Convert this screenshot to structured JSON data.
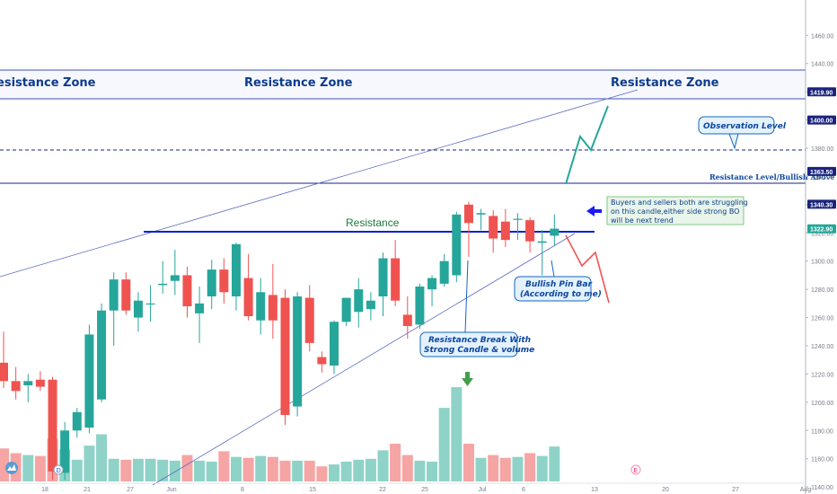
{
  "chart_data": {
    "type": "candlestick",
    "y_axis": {
      "ylim": [
        1135,
        1485
      ],
      "tick_values": [
        1140,
        1160,
        1180,
        1200,
        1220,
        1240,
        1260,
        1280,
        1300,
        1320,
        1340,
        1360,
        1380,
        1400,
        1420,
        1440,
        1460
      ],
      "tick_labels": [
        "1140.00",
        "1160.00",
        "1180.00",
        "1200.00",
        "1220.00",
        "1240.00",
        "1260.00",
        "1280.00",
        "1300.00",
        "1320.00",
        "1340.00",
        "1360.00",
        "1380.00",
        "1400.00",
        "1420.00",
        "1440.00",
        "1460.00"
      ],
      "price_tags": [
        {
          "value": 1419.9,
          "label": "1419.90",
          "color": "#1a237e"
        },
        {
          "value": 1400.0,
          "label": "1400.00",
          "color": "#1a237e"
        },
        {
          "value": 1363.5,
          "label": "1363.50",
          "color": "#1a237e"
        },
        {
          "value": 1340.3,
          "label": "1340.30",
          "color": "#1a237e"
        },
        {
          "value": 1322.9,
          "label": "1322.90",
          "color": "#26a69a"
        }
      ]
    },
    "x_axis": {
      "tick_labels": [
        {
          "label": "18",
          "index": 0
        },
        {
          "label": "21",
          "index": 1
        },
        {
          "label": "27",
          "index": 2
        },
        {
          "label": "Jun",
          "index": 3
        },
        {
          "label": "8",
          "index": 4
        },
        {
          "label": "15",
          "index": 5
        },
        {
          "label": "22",
          "index": 6
        },
        {
          "label": "25",
          "index": 7
        },
        {
          "label": "Jul",
          "index": 8
        },
        {
          "label": "6",
          "index": 9
        },
        {
          "label": "13",
          "index": 10
        },
        {
          "label": "20",
          "index": 11
        },
        {
          "label": "27",
          "index": 12
        },
        {
          "label": "Aug",
          "index": 13
        }
      ]
    },
    "colors": {
      "up": "#26a69a",
      "down": "#ef5350",
      "vol_up": "#8fd3c8",
      "vol_down": "#f5a5a4",
      "line": "#1a237e",
      "blue": "#0d1fd6"
    },
    "candles": [
      {
        "o": 1228,
        "h": 1250,
        "l": 1210,
        "c": 1215,
        "v": 0.35
      },
      {
        "o": 1215,
        "h": 1225,
        "l": 1202,
        "c": 1208,
        "v": 0.3
      },
      {
        "o": 1212,
        "h": 1220,
        "l": 1200,
        "c": 1215,
        "v": 0.28
      },
      {
        "o": 1216,
        "h": 1222,
        "l": 1208,
        "c": 1211,
        "v": 0.27
      },
      {
        "o": 1216,
        "h": 1218,
        "l": 1145,
        "c": 1151,
        "v": 0.45
      },
      {
        "o": 1150,
        "h": 1186,
        "l": 1145,
        "c": 1180,
        "v": 0.34
      },
      {
        "o": 1180,
        "h": 1196,
        "l": 1175,
        "c": 1193,
        "v": 0.23
      },
      {
        "o": 1182,
        "h": 1255,
        "l": 1178,
        "c": 1248,
        "v": 0.38
      },
      {
        "o": 1202,
        "h": 1270,
        "l": 1200,
        "c": 1265,
        "v": 0.5
      },
      {
        "o": 1265,
        "h": 1292,
        "l": 1240,
        "c": 1287,
        "v": 0.24
      },
      {
        "o": 1287,
        "h": 1292,
        "l": 1262,
        "c": 1265,
        "v": 0.23
      },
      {
        "o": 1260,
        "h": 1278,
        "l": 1250,
        "c": 1272,
        "v": 0.24
      },
      {
        "o": 1270,
        "h": 1283,
        "l": 1257,
        "c": 1270,
        "v": 0.24
      },
      {
        "o": 1283,
        "h": 1300,
        "l": 1277,
        "c": 1284,
        "v": 0.23
      },
      {
        "o": 1286,
        "h": 1308,
        "l": 1276,
        "c": 1290,
        "v": 0.22
      },
      {
        "o": 1290,
        "h": 1296,
        "l": 1260,
        "c": 1268,
        "v": 0.28
      },
      {
        "o": 1263,
        "h": 1282,
        "l": 1242,
        "c": 1270,
        "v": 0.22
      },
      {
        "o": 1275,
        "h": 1301,
        "l": 1266,
        "c": 1294,
        "v": 0.21
      },
      {
        "o": 1294,
        "h": 1302,
        "l": 1270,
        "c": 1278,
        "v": 0.32
      },
      {
        "o": 1275,
        "h": 1313,
        "l": 1265,
        "c": 1312,
        "v": 0.26
      },
      {
        "o": 1288,
        "h": 1305,
        "l": 1258,
        "c": 1261,
        "v": 0.25
      },
      {
        "o": 1258,
        "h": 1288,
        "l": 1248,
        "c": 1278,
        "v": 0.27
      },
      {
        "o": 1276,
        "h": 1298,
        "l": 1245,
        "c": 1258,
        "v": 0.26
      },
      {
        "o": 1274,
        "h": 1280,
        "l": 1184,
        "c": 1191,
        "v": 0.22
      },
      {
        "o": 1197,
        "h": 1278,
        "l": 1190,
        "c": 1275,
        "v": 0.22
      },
      {
        "o": 1274,
        "h": 1283,
        "l": 1236,
        "c": 1242,
        "v": 0.22
      },
      {
        "o": 1232,
        "h": 1236,
        "l": 1221,
        "c": 1227,
        "v": 0.16
      },
      {
        "o": 1226,
        "h": 1258,
        "l": 1220,
        "c": 1257,
        "v": 0.18
      },
      {
        "o": 1257,
        "h": 1274,
        "l": 1254,
        "c": 1274,
        "v": 0.21
      },
      {
        "o": 1264,
        "h": 1288,
        "l": 1253,
        "c": 1280,
        "v": 0.23
      },
      {
        "o": 1266,
        "h": 1278,
        "l": 1258,
        "c": 1272,
        "v": 0.24
      },
      {
        "o": 1275,
        "h": 1306,
        "l": 1261,
        "c": 1302,
        "v": 0.33
      },
      {
        "o": 1302,
        "h": 1315,
        "l": 1268,
        "c": 1272,
        "v": 0.4
      },
      {
        "o": 1262,
        "h": 1275,
        "l": 1245,
        "c": 1254,
        "v": 0.28
      },
      {
        "o": 1255,
        "h": 1284,
        "l": 1252,
        "c": 1282,
        "v": 0.22
      },
      {
        "o": 1280,
        "h": 1290,
        "l": 1268,
        "c": 1288,
        "v": 0.21
      },
      {
        "o": 1284,
        "h": 1305,
        "l": 1282,
        "c": 1300,
        "v": 0.78
      },
      {
        "o": 1290,
        "h": 1335,
        "l": 1285,
        "c": 1333,
        "v": 1.0
      },
      {
        "o": 1340,
        "h": 1342,
        "l": 1303,
        "c": 1327,
        "v": 0.4
      },
      {
        "o": 1333,
        "h": 1337,
        "l": 1322,
        "c": 1334,
        "v": 0.25
      },
      {
        "o": 1332,
        "h": 1336,
        "l": 1306,
        "c": 1316,
        "v": 0.28
      },
      {
        "o": 1328,
        "h": 1337,
        "l": 1310,
        "c": 1315,
        "v": 0.25
      },
      {
        "o": 1330,
        "h": 1334,
        "l": 1315,
        "c": 1330,
        "v": 0.26
      },
      {
        "o": 1329,
        "h": 1331,
        "l": 1306,
        "c": 1314,
        "v": 0.3
      },
      {
        "o": 1313,
        "h": 1322,
        "l": 1290,
        "c": 1314,
        "v": 0.27
      },
      {
        "o": 1318,
        "h": 1333,
        "l": 1311,
        "c": 1323,
        "v": 0.37
      }
    ],
    "annotations": {
      "zone_labels": [
        "Resistance Zone",
        "Resistance Zone",
        "Resistance Zone"
      ],
      "resistance_label": "Resistance",
      "resistance_above_label": "Resistance Level/Bullish Above",
      "observation_label": "Observation Level",
      "note_lines": [
        "Buyers and sellers both are struggling",
        "on this candle,either side strong BO",
        "will be next trend"
      ],
      "pin_bar_lines": [
        "Bullish Pin Bar",
        "(According to me)"
      ],
      "break_lines": [
        "Resistance Break With",
        "Strong Candle & volume"
      ],
      "event_letters": [
        "D",
        "E"
      ]
    }
  }
}
